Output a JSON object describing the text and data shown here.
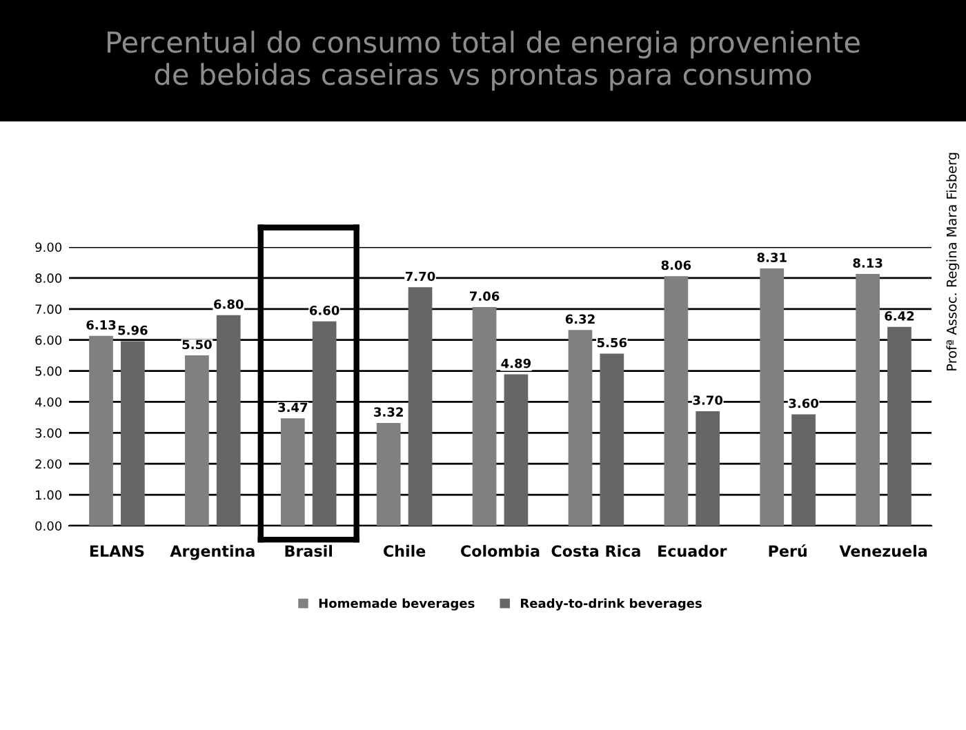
{
  "chart_data": {
    "type": "bar",
    "title": "Percentual do consumo total de energia proveniente\nde bebidas caseiras vs prontas para consumo",
    "categories": [
      "ELANS",
      "Argentina",
      "Brasil",
      "Chile",
      "Colombia",
      "Costa Rica",
      "Ecuador",
      "Perú",
      "Venezuela"
    ],
    "series": [
      {
        "name": "Homemade beverages",
        "color": "#808080",
        "values": [
          6.13,
          5.5,
          3.47,
          3.32,
          7.06,
          6.32,
          8.06,
          8.31,
          8.13
        ],
        "value_labels": [
          "6.13",
          "5.50",
          "3.47",
          "3.32",
          "7.06",
          "6.32",
          "8.06",
          "8.31",
          "8.13"
        ]
      },
      {
        "name": "Ready-to-drink beverages",
        "color": "#666666",
        "values": [
          5.96,
          6.8,
          6.6,
          7.7,
          4.89,
          5.56,
          3.7,
          3.6,
          6.42
        ],
        "value_labels": [
          "5.96",
          "6.80",
          "6.60",
          "7.70",
          "4.89",
          "5.56",
          "3.70",
          "3.60",
          "6.42"
        ]
      }
    ],
    "ylim": [
      0,
      9
    ],
    "yticks": [
      {
        "value": 0,
        "label": "0.00"
      },
      {
        "value": 1,
        "label": "1.00"
      },
      {
        "value": 2,
        "label": "2.00"
      },
      {
        "value": 3,
        "label": "3.00"
      },
      {
        "value": 4,
        "label": "4.00"
      },
      {
        "value": 5,
        "label": "5.00"
      },
      {
        "value": 6,
        "label": "6.00"
      },
      {
        "value": 7,
        "label": "7.00"
      },
      {
        "value": 8,
        "label": "8.00"
      },
      {
        "value": 9,
        "label": "9.00"
      }
    ],
    "grid": "y",
    "legend": "bottom",
    "annotations": [
      "Profª Assoc. Regina Mara Fisberg"
    ]
  }
}
